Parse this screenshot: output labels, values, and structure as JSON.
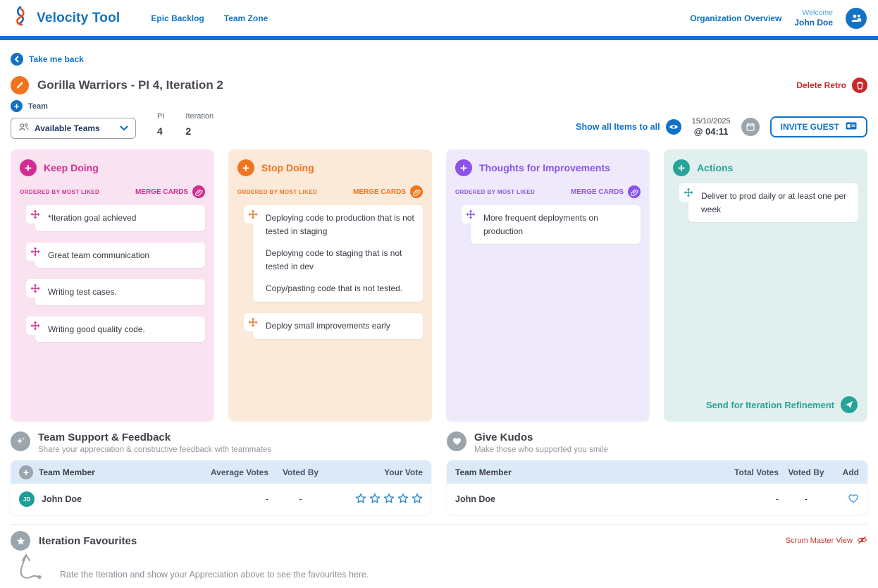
{
  "header": {
    "app_title": "Velocity Tool",
    "nav": [
      "Epic Backlog",
      "Team Zone"
    ],
    "org_link": "Organization Overview",
    "welcome": "Welcome",
    "user_name": "John Doe"
  },
  "toolbar": {
    "back_label": "Take me back",
    "retro_title": "Gorilla Warriors - PI 4, Iteration 2",
    "delete_label": "Delete Retro",
    "team_label": "Team",
    "team_select_value": "Available Teams",
    "pi_label": "PI",
    "pi_value": "4",
    "iteration_label": "Iteration",
    "iteration_value": "2",
    "show_all_label": "Show all Items to all",
    "date": "15/10/2025",
    "time": "@ 04:11",
    "invite_label": "INVITE GUEST"
  },
  "columns": [
    {
      "title": "Keep Doing",
      "accent": "#D12D93",
      "bg": "#FAE3F1",
      "ordered_label": "ORDERED BY MOST LIKED",
      "merge_label": "MERGE CARDS",
      "cards": [
        {
          "lines": [
            "*Iteration goal achieved"
          ]
        },
        {
          "lines": [
            "Great team communication"
          ]
        },
        {
          "lines": [
            "Writing test cases."
          ]
        },
        {
          "lines": [
            "Writing good quality code."
          ]
        }
      ]
    },
    {
      "title": "Stop Doing",
      "accent": "#F0741F",
      "bg": "#FBE9D9",
      "ordered_label": "ORDERED BY MOST LIKED",
      "merge_label": "MERGE CARDS",
      "cards": [
        {
          "lines": [
            "Deploying code to production that is not tested in staging",
            "Deploying code to staging that is not tested in dev",
            "Copy/pasting code that is not tested."
          ]
        },
        {
          "lines": [
            "Deploy small improvements early"
          ]
        }
      ]
    },
    {
      "title": "Thoughts for Improvements",
      "accent": "#8B53E8",
      "bg": "#EFEAFB",
      "ordered_label": "ORDERED BY MOST LIKED",
      "merge_label": "MERGE CARDS",
      "cards": [
        {
          "lines": [
            "More frequent deployments on production"
          ]
        }
      ]
    },
    {
      "title": "Actions",
      "accent": "#27A39A",
      "bg": "#E1F0EE",
      "cards": [
        {
          "lines": [
            "Deliver to prod daily or at least one per week"
          ]
        }
      ],
      "footer_label": "Send for Iteration Refinement"
    }
  ],
  "support": {
    "title": "Team Support & Feedback",
    "subtitle": "Share your appreciation & constructive feedback with teammates",
    "headers": [
      "Team Member",
      "Average Votes",
      "Voted By",
      "Your Vote"
    ],
    "row": {
      "initials": "JD",
      "name": "John Doe",
      "average_votes": "-",
      "voted_by": "-",
      "stars": 5
    }
  },
  "kudos": {
    "title": "Give Kudos",
    "subtitle": "Make those who supported you smile",
    "headers": [
      "Team Member",
      "Total Votes",
      "Voted By",
      "Add"
    ],
    "row": {
      "name": "John Doe",
      "total_votes": "-",
      "voted_by": "-"
    }
  },
  "favourites": {
    "title": "Iteration Favourites",
    "scrum_master_label": "Scrum Master View",
    "hint": "Rate the Iteration and show your Appreciation above to see the favourites here."
  },
  "icons": {
    "logo": "violin-clef",
    "avatar": "users-badge",
    "back": "chevron-left-circle",
    "edit_title": "pencil-circle",
    "delete": "trash-circle",
    "team_add": "plus-circle",
    "team_select": "team-people",
    "select_caret": "chevron-down",
    "show_all": "eye-circle",
    "calendar": "calendar-circle",
    "invite": "id-card",
    "merge": "link-circle",
    "card_handle": "move-cross",
    "send": "paper-plane-circle",
    "support": "sparkle-circle",
    "kudos": "heart-circle",
    "favourites": "star-circle",
    "scrum_view": "eye-slash",
    "vote_star": "star-outline",
    "kudos_add": "heart-outline"
  },
  "colors": {
    "primary": "#1173C5",
    "danger": "#C62828",
    "keep_doing": "#D12D93",
    "keep_doing_bg": "#FAE3F1",
    "stop_doing": "#F0741F",
    "stop_doing_bg": "#FBE9D9",
    "improvements": "#8B53E8",
    "improvements_bg": "#EFEAFB",
    "actions": "#27A39A",
    "actions_bg": "#E1F0EE",
    "table_header_bg": "#DCEAF8",
    "section_icon": "#9AA5AD",
    "avatar_member": "#1D9E96",
    "star": "#2E86C1"
  }
}
